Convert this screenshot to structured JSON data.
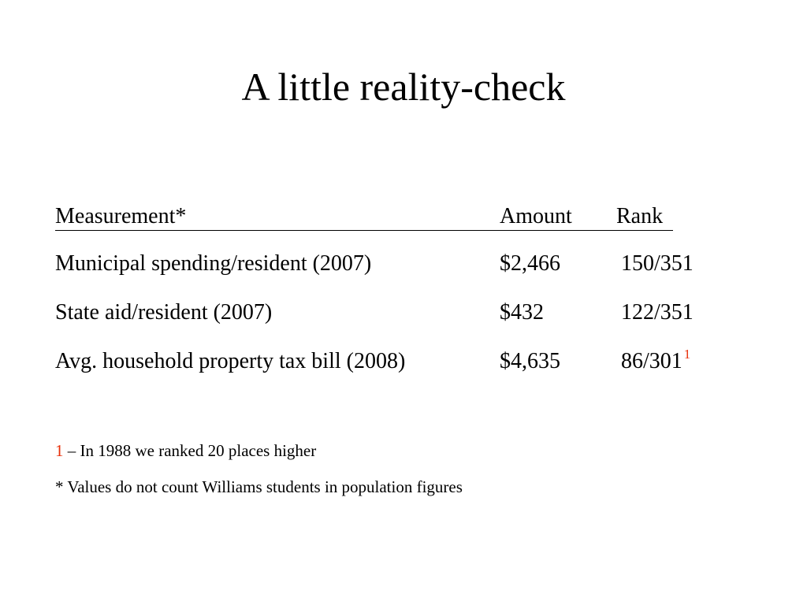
{
  "slide": {
    "title": "A little reality-check"
  },
  "table": {
    "headers": {
      "measurement": "Measurement*",
      "amount": "Amount",
      "rank": "Rank"
    },
    "rows": [
      {
        "measurement": "Municipal spending/resident (2007)",
        "amount": "$2,466",
        "rank": "150/351",
        "footnote": ""
      },
      {
        "measurement": "State aid/resident (2007)",
        "amount": "$432",
        "rank": "122/351",
        "footnote": ""
      },
      {
        "measurement": "Avg. household property tax bill (2008)",
        "amount": "$4,635",
        "rank": "86/301",
        "footnote": "1"
      }
    ]
  },
  "notes": {
    "footnote_marker": "1",
    "footnote_text": " – In 1988 we ranked 20 places higher",
    "asterisk_note": "* Values do not count Williams students in population figures"
  },
  "colors": {
    "footnote_accent": "#e8300a"
  }
}
